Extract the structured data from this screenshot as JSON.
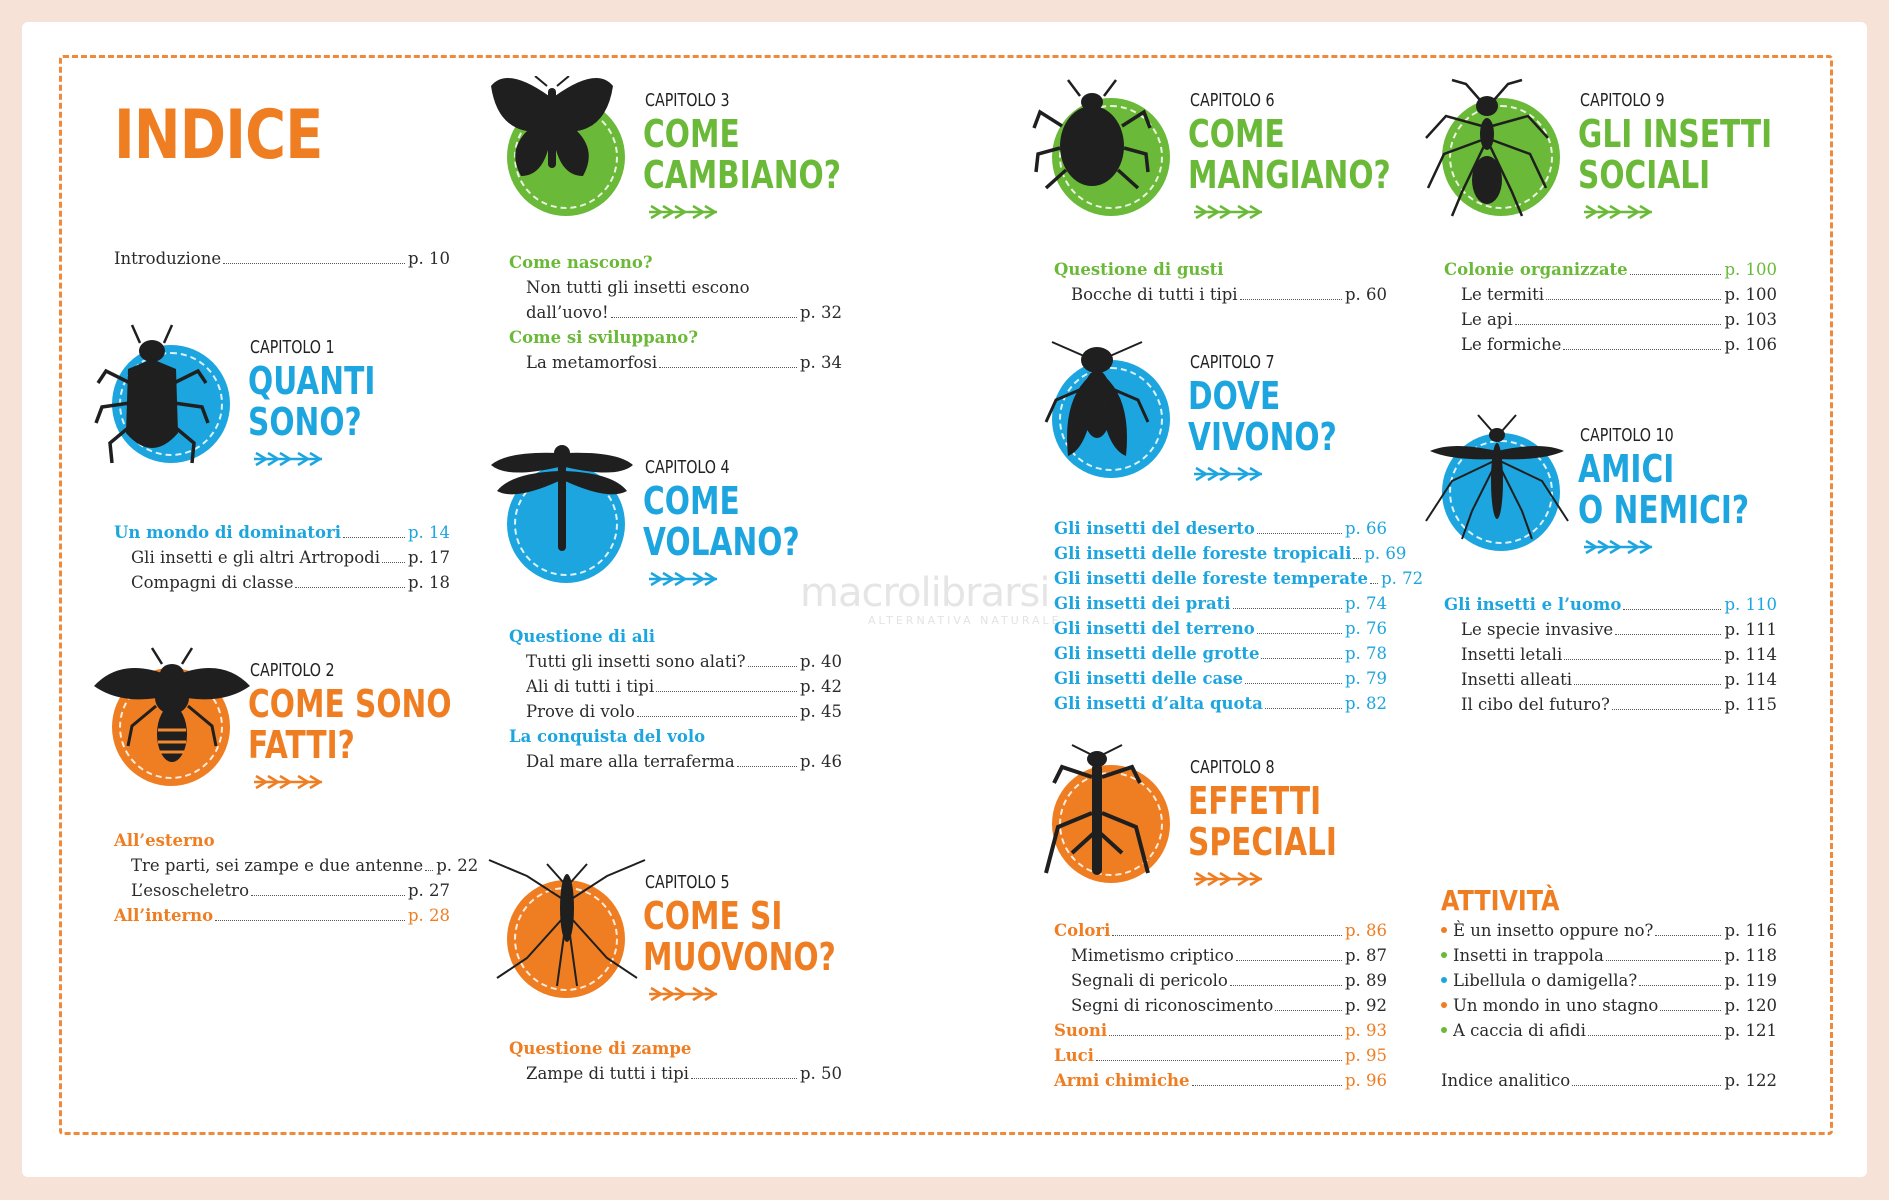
{
  "colors": {
    "blue": "#1da5df",
    "green": "#6ab938",
    "orange": "#ef7d22",
    "bug": "#1f1f1f",
    "frame": "#ef8a3c"
  },
  "title": "INDICE",
  "intro": {
    "label": "Introduzione",
    "page": "p. 10"
  },
  "watermark": {
    "brand": "macrolibrarsi",
    "tagline": "ALTERNATIVA NATURALE"
  },
  "chapters": [
    {
      "cap": "CAPITOLO 1",
      "title_lines": [
        "QUANTI",
        "SONO?"
      ],
      "color": "blue",
      "icon": "beetle-icon",
      "entries": [
        {
          "label": "Un mondo di dominatori",
          "page": "p. 14",
          "head": true
        },
        {
          "label": "Gli insetti e gli altri Artropodi",
          "page": "p. 17"
        },
        {
          "label": "Compagni di classe",
          "page": "p. 18"
        }
      ]
    },
    {
      "cap": "CAPITOLO 2",
      "title_lines": [
        "COME SONO",
        "FATTI?"
      ],
      "color": "orange",
      "icon": "bee-icon",
      "entries": [
        {
          "label": "All’esterno",
          "page": "",
          "head": true
        },
        {
          "label": "Tre parti, sei zampe e due antenne",
          "page": "p. 22"
        },
        {
          "label": "L’esoscheletro",
          "page": "p. 27"
        },
        {
          "label": "All’interno",
          "page": "p. 28",
          "head": true
        }
      ]
    },
    {
      "cap": "CAPITOLO 3",
      "title_lines": [
        "COME",
        "CAMBIANO?"
      ],
      "color": "green",
      "icon": "butterfly-icon",
      "entries": [
        {
          "label": "Come nascono?",
          "page": "",
          "head": true
        },
        {
          "label": "Non tutti gli insetti escono",
          "page": ""
        },
        {
          "label": "dall’uovo!",
          "page": "p. 32"
        },
        {
          "label": "Come si sviluppano?",
          "page": "",
          "head": true
        },
        {
          "label": "La metamorfosi",
          "page": "p. 34"
        }
      ]
    },
    {
      "cap": "CAPITOLO 4",
      "title_lines": [
        "COME",
        "VOLANO?"
      ],
      "color": "blue",
      "icon": "dragonfly-icon",
      "entries": [
        {
          "label": "Questione di ali",
          "page": "",
          "head": true
        },
        {
          "label": "Tutti gli insetti sono alati?",
          "page": "p. 40"
        },
        {
          "label": "Ali di tutti i tipi",
          "page": "p. 42"
        },
        {
          "label": "Prove di volo",
          "page": "p. 45"
        },
        {
          "label": "La conquista del volo",
          "page": "",
          "head": true
        },
        {
          "label": "Dal mare alla terraferma",
          "page": "p. 46"
        }
      ]
    },
    {
      "cap": "CAPITOLO 5",
      "title_lines": [
        "COME SI",
        "MUOVONO?"
      ],
      "color": "orange",
      "icon": "water-strider-icon",
      "entries": [
        {
          "label": "Questione di zampe",
          "page": "",
          "head": true
        },
        {
          "label": "Zampe di tutti i tipi",
          "page": "p. 50"
        }
      ]
    },
    {
      "cap": "CAPITOLO 6",
      "title_lines": [
        "COME",
        "MANGIANO?"
      ],
      "color": "green",
      "icon": "aphid-icon",
      "entries": [
        {
          "label": "Questione di gusti",
          "page": "",
          "head": true
        },
        {
          "label": "Bocche di tutti i tipi",
          "page": "p. 60"
        }
      ]
    },
    {
      "cap": "CAPITOLO 7",
      "title_lines": [
        "DOVE",
        "VIVONO?"
      ],
      "color": "blue",
      "icon": "fly-icon",
      "entries": [
        {
          "label": "Gli insetti del deserto",
          "page": "p. 66",
          "head": true
        },
        {
          "label": "Gli insetti delle foreste tropicali",
          "page": "p. 69",
          "head": true
        },
        {
          "label": "Gli insetti delle foreste temperate",
          "page": "p. 72",
          "head": true
        },
        {
          "label": "Gli insetti dei prati",
          "page": "p. 74",
          "head": true
        },
        {
          "label": "Gli insetti del terreno",
          "page": "p. 76",
          "head": true
        },
        {
          "label": "Gli insetti delle grotte",
          "page": "p. 78",
          "head": true
        },
        {
          "label": "Gli insetti delle case",
          "page": "p. 79",
          "head": true
        },
        {
          "label": "Gli insetti d’alta quota",
          "page": "p. 82",
          "head": true
        }
      ]
    },
    {
      "cap": "CAPITOLO 8",
      "title_lines": [
        "EFFETTI",
        "SPECIALI"
      ],
      "color": "orange",
      "icon": "mantis-icon",
      "entries": [
        {
          "label": "Colori",
          "page": "p. 86",
          "head": true
        },
        {
          "label": "Mimetismo criptico",
          "page": "p. 87"
        },
        {
          "label": "Segnali di pericolo",
          "page": "p. 89"
        },
        {
          "label": "Segni di riconoscimento",
          "page": "p. 92"
        },
        {
          "label": "Suoni",
          "page": "p. 93",
          "head": true
        },
        {
          "label": "Luci",
          "page": "p. 95",
          "head": true
        },
        {
          "label": "Armi chimiche",
          "page": "p. 96",
          "head": true
        }
      ]
    },
    {
      "cap": "CAPITOLO 9",
      "title_lines": [
        "GLI INSETTI",
        "SOCIALI"
      ],
      "color": "green",
      "icon": "ant-icon",
      "entries": [
        {
          "label": "Colonie organizzate",
          "page": "p. 100",
          "head": true
        },
        {
          "label": "Le termiti",
          "page": "p. 100"
        },
        {
          "label": "Le api",
          "page": "p. 103"
        },
        {
          "label": "Le formiche",
          "page": "p. 106"
        }
      ]
    },
    {
      "cap": "CAPITOLO 10",
      "title_lines": [
        "AMICI",
        "O NEMICI?"
      ],
      "color": "blue",
      "icon": "mosquito-icon",
      "entries": [
        {
          "label": "Gli insetti e l’uomo",
          "page": "p. 110",
          "head": true
        },
        {
          "label": "Le specie invasive",
          "page": "p. 111"
        },
        {
          "label": "Insetti letali",
          "page": "p. 114"
        },
        {
          "label": "Insetti alleati",
          "page": "p. 114"
        },
        {
          "label": "Il cibo del futuro?",
          "page": "p. 115"
        }
      ]
    }
  ],
  "activities": {
    "title": "ATTIVITÀ",
    "items": [
      {
        "label": "È un insetto oppure no?",
        "page": "p. 116",
        "color": "orange"
      },
      {
        "label": "Insetti in trappola",
        "page": "p. 118",
        "color": "green"
      },
      {
        "label": "Libellula o damigella?",
        "page": "p. 119",
        "color": "blue"
      },
      {
        "label": "Un mondo in uno stagno",
        "page": "p. 120",
        "color": "orange"
      },
      {
        "label": "A caccia di afidi",
        "page": "p. 121",
        "color": "green"
      }
    ],
    "index": {
      "label": "Indice analitico",
      "page": "p. 122"
    }
  }
}
